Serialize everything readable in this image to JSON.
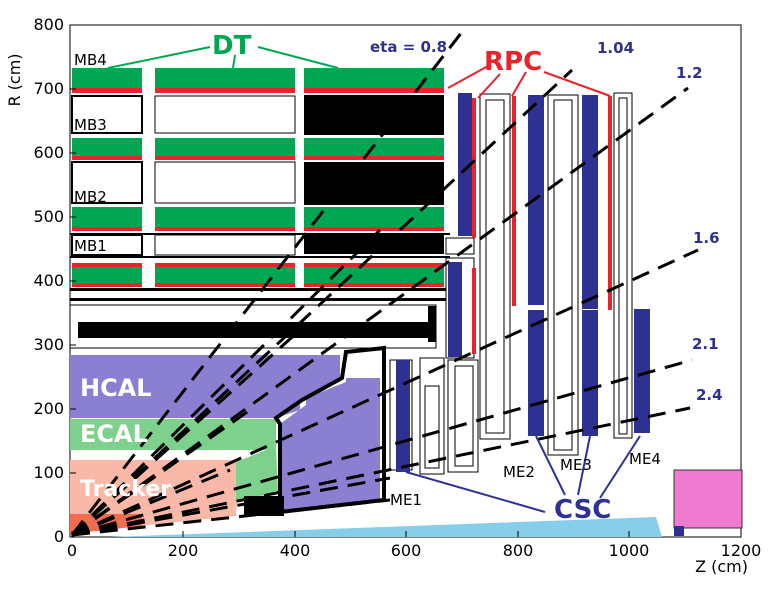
{
  "axes": {
    "y_title": "R  (cm)",
    "x_title": "Z  (cm)",
    "y_ticks": [
      "0",
      "100",
      "200",
      "300",
      "400",
      "500",
      "600",
      "700",
      "800"
    ],
    "x_ticks": [
      "0",
      "200",
      "400",
      "600",
      "800",
      "1000",
      "1200"
    ]
  },
  "barrel_stations": [
    "MB4",
    "MB3",
    "MB2",
    "MB1"
  ],
  "endcap_stations": [
    "ME1",
    "ME2",
    "ME3",
    "ME4"
  ],
  "eta_lines": [
    "eta = 0.8",
    "1.04",
    "1.2",
    "1.6",
    "2.1",
    "2.4"
  ],
  "detector_labels": {
    "dt": "DT",
    "rpc": "RPC",
    "csc": "CSC",
    "hcal": "HCAL",
    "ecal": "ECAL",
    "tracker": "Tracker"
  },
  "colors": {
    "dt": "#00a651",
    "rpc": "#e8232a",
    "csc": "#2e3192",
    "hcal": "#8a7fd0",
    "ecal": "#7dd18d",
    "tracker": "#f9b8a8",
    "pixel": "#f26d50",
    "beampipe": "#87ceeb",
    "forward": "#f07ad0",
    "eta_text": "#2e3192"
  }
}
